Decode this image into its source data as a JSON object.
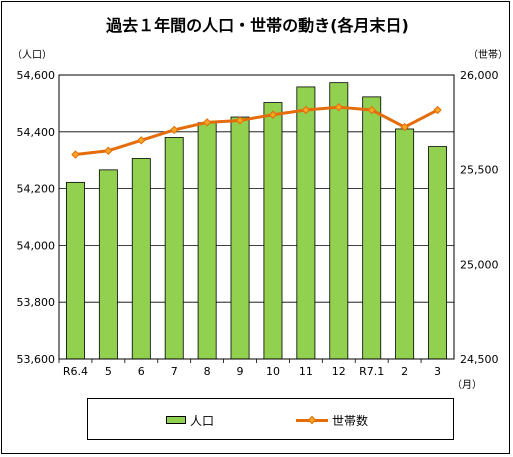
{
  "title": "過去１年間の人口・世帯の動き(各月末日)",
  "left_unit": "（人口）",
  "right_unit": "（世帯）",
  "x_unit": "（月）",
  "colors": {
    "bar": "#92D050",
    "bar_stroke": "#000000",
    "line": "#E46C0A",
    "marker": "#F5A623"
  },
  "legend": {
    "bar_label": "人口",
    "line_label": "世帯数"
  },
  "chart_data": {
    "type": "bar+line",
    "categories": [
      "R6.4",
      "5",
      "6",
      "7",
      "8",
      "9",
      "10",
      "11",
      "12",
      "R7.1",
      "2",
      "3"
    ],
    "series": [
      {
        "name": "人口",
        "type": "bar",
        "axis": "left",
        "values": [
          54222,
          54266,
          54306,
          54380,
          54432,
          54452,
          54503,
          54558,
          54573,
          54523,
          54410,
          54348
        ]
      },
      {
        "name": "世帯数",
        "type": "line",
        "axis": "right",
        "values": [
          25580,
          25600,
          25655,
          25710,
          25750,
          25760,
          25790,
          25815,
          25830,
          25815,
          25725,
          25815
        ]
      }
    ],
    "y_left": {
      "min": 53600,
      "max": 54600,
      "ticks": [
        "53,600",
        "53,800",
        "54,000",
        "54,200",
        "54,400",
        "54,600"
      ]
    },
    "y_right": {
      "min": 24500,
      "max": 26000,
      "ticks": [
        "24,500",
        "25,000",
        "25,500",
        "26,000"
      ]
    },
    "grid": true,
    "legend_position": "bottom"
  }
}
